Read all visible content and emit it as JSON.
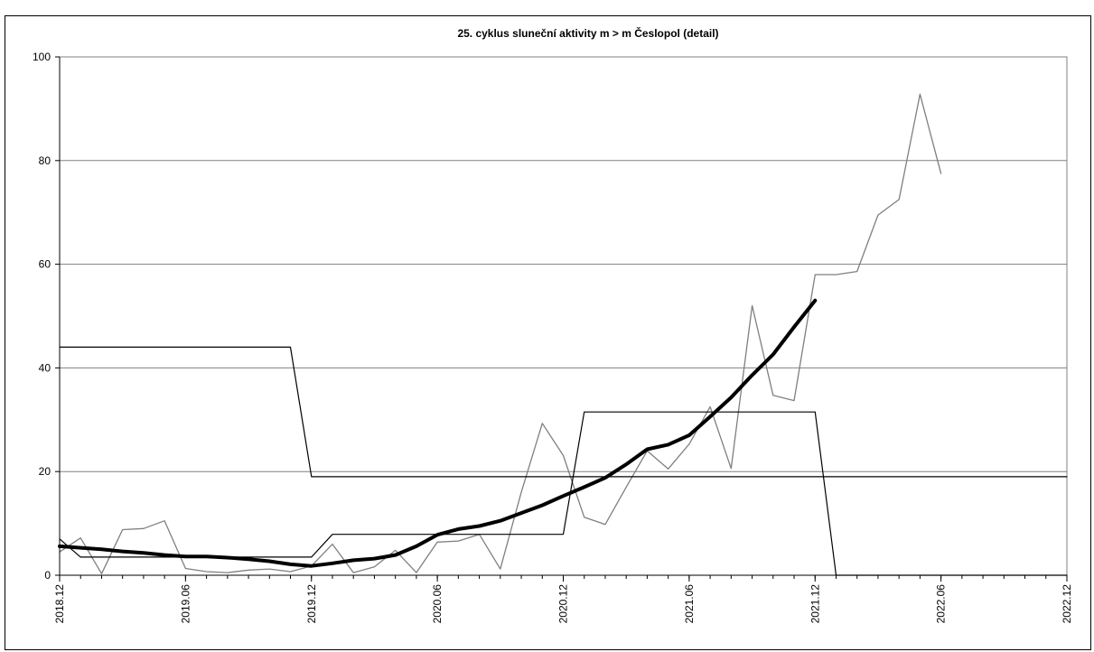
{
  "chart_data": {
    "type": "line",
    "title": "25. cyklus sluneční aktivity  m > m Česlopol (detail)",
    "xlabel": "",
    "ylabel": "",
    "ylim": [
      0,
      100
    ],
    "yticks": [
      0,
      20,
      40,
      60,
      80,
      100
    ],
    "xlim": [
      "2018.12",
      "2022.12"
    ],
    "xticks": [
      "2018.12",
      "2019.06",
      "2019.12",
      "2020.06",
      "2020.12",
      "2021.06",
      "2021.12",
      "2022.06",
      "2022.12"
    ],
    "grid": "horizontal",
    "legend": "none",
    "series": [
      {
        "style": "thin-gray",
        "color": "#7f7f7f",
        "x": [
          "2018.12",
          "2019.01",
          "2019.02",
          "2019.03",
          "2019.04",
          "2019.05",
          "2019.06",
          "2019.07",
          "2019.08",
          "2019.09",
          "2019.10",
          "2019.11",
          "2019.12",
          "2020.01",
          "2020.02",
          "2020.03",
          "2020.04",
          "2020.05",
          "2020.06",
          "2020.07",
          "2020.08",
          "2020.09",
          "2020.10",
          "2020.11",
          "2020.12",
          "2021.01",
          "2021.02",
          "2021.03",
          "2021.04",
          "2021.05",
          "2021.06",
          "2021.07",
          "2021.08",
          "2021.09",
          "2021.10",
          "2021.11",
          "2021.12",
          "2022.01",
          "2022.02",
          "2022.03",
          "2022.04",
          "2022.05",
          "2022.06"
        ],
        "values": [
          4.5,
          7.2,
          0.3,
          8.8,
          9.0,
          10.5,
          1.3,
          0.7,
          0.5,
          1.0,
          1.2,
          0.7,
          1.8,
          6.0,
          0.5,
          1.6,
          4.8,
          0.5,
          6.4,
          6.6,
          7.9,
          1.2,
          16.0,
          29.3,
          23.1,
          11.2,
          9.8,
          17.0,
          24.0,
          20.5,
          25.3,
          32.5,
          20.6,
          52.0,
          34.7,
          33.7,
          58.0,
          58.0,
          58.6,
          69.5,
          72.5,
          92.8,
          77.5
        ]
      },
      {
        "style": "thick-black",
        "color": "#000000",
        "x": [
          "2018.12",
          "2019.01",
          "2019.02",
          "2019.03",
          "2019.04",
          "2019.05",
          "2019.06",
          "2019.07",
          "2019.08",
          "2019.09",
          "2019.10",
          "2019.11",
          "2019.12",
          "2020.01",
          "2020.02",
          "2020.03",
          "2020.04",
          "2020.05",
          "2020.06",
          "2020.07",
          "2020.08",
          "2020.09",
          "2020.10",
          "2020.11",
          "2020.12",
          "2021.01",
          "2021.02",
          "2021.03",
          "2021.04",
          "2021.05",
          "2021.06",
          "2021.07",
          "2021.08",
          "2021.09",
          "2021.10",
          "2021.11",
          "2021.12"
        ],
        "values": [
          5.6,
          5.3,
          5.0,
          4.6,
          4.3,
          3.9,
          3.6,
          3.6,
          3.4,
          3.1,
          2.7,
          2.1,
          1.8,
          2.3,
          2.9,
          3.2,
          3.9,
          5.6,
          7.8,
          8.9,
          9.5,
          10.5,
          12.0,
          13.5,
          15.3,
          17.0,
          18.8,
          21.4,
          24.3,
          25.2,
          27.0,
          30.6,
          34.3,
          38.6,
          42.6,
          47.9,
          53.0
        ]
      },
      {
        "style": "thin-black-step",
        "color": "#000000",
        "points": [
          [
            "2018.12",
            7.0
          ],
          [
            "2019.01",
            3.5
          ],
          [
            "2019.12",
            3.5
          ],
          [
            "2020.01",
            7.9
          ],
          [
            "2020.12",
            7.9
          ],
          [
            "2021.01",
            31.5
          ],
          [
            "2021.12",
            31.5
          ],
          [
            "2022.01",
            0
          ],
          [
            "2022.12",
            0
          ]
        ]
      },
      {
        "style": "thin-black-step",
        "color": "#000000",
        "points": [
          [
            "2018.12",
            44.0
          ],
          [
            "2019.11",
            44.0
          ],
          [
            "2019.12",
            19.0
          ],
          [
            "2022.12",
            19.0
          ]
        ]
      }
    ]
  }
}
